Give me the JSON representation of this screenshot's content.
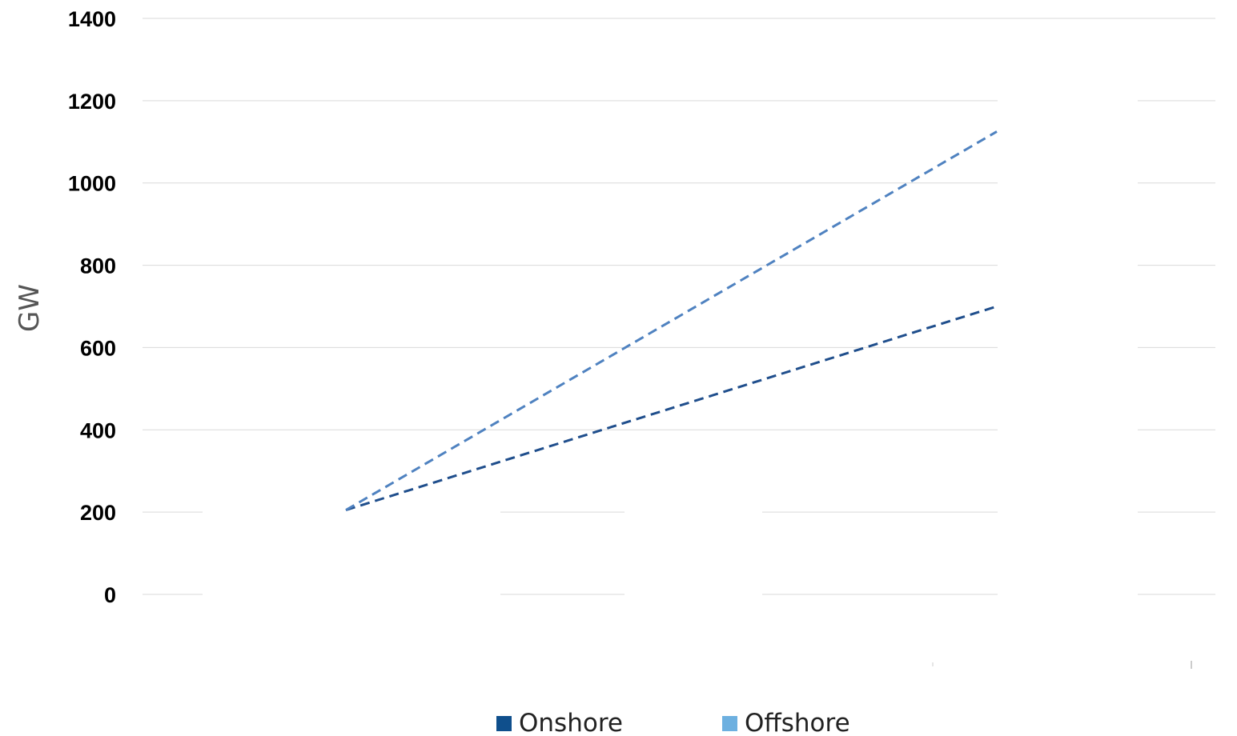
{
  "chart_data": {
    "type": "line",
    "ylabel": "GW",
    "xlabel": "",
    "ylim": [
      0,
      1400
    ],
    "yticks": [
      "0",
      "200",
      "400",
      "600",
      "800",
      "1000",
      "1200",
      "1400"
    ],
    "grid": true,
    "legend_position": "bottom",
    "series": [
      {
        "name": "Onshore",
        "color": "#1f4e8c",
        "legend_color": "#0f4f8c",
        "line_style": "dashed",
        "points": [
          {
            "y": 205
          },
          {
            "y": 700
          }
        ]
      },
      {
        "name": "Offshore",
        "color": "#4f82c0",
        "legend_color": "#6db0e0",
        "line_style": "dashed",
        "points": [
          {
            "y": 205
          },
          {
            "y": 1125
          }
        ]
      }
    ]
  }
}
